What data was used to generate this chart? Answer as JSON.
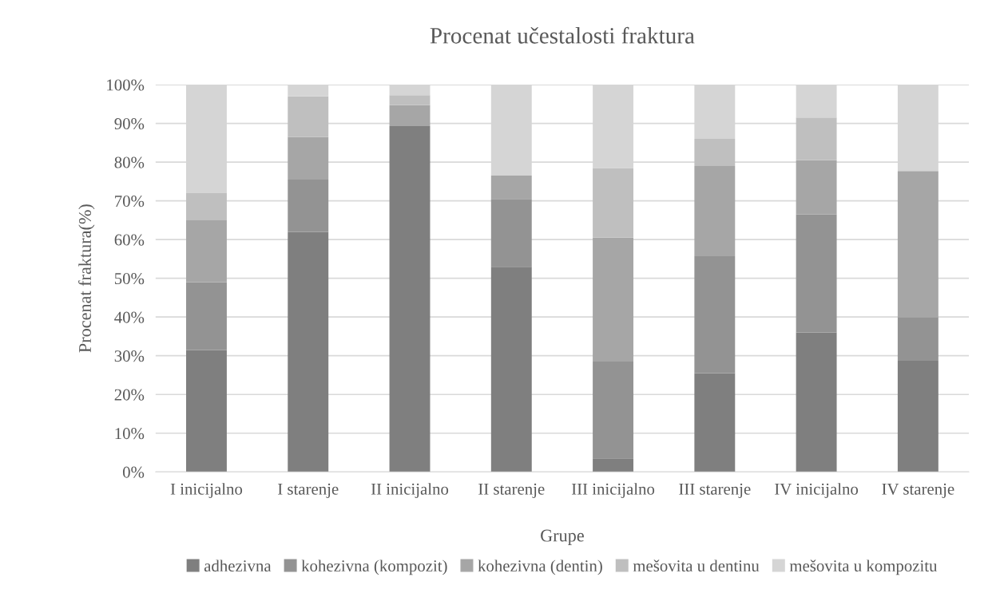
{
  "chart_data": {
    "type": "bar",
    "stacked": true,
    "title": "Procenat učestalosti fraktura",
    "xlabel": "Grupe",
    "ylabel": "Procenat fraktura(%)",
    "categories": [
      "I inicijalno",
      "I starenje",
      "II inicijalno",
      "II starenje",
      "III inicijalno",
      "III starenje",
      "IV inicijalno",
      "IV starenje"
    ],
    "series": [
      {
        "name": "adhezivna",
        "color": "#7f7f7f",
        "values": [
          31.5,
          62,
          89.3,
          53,
          3.5,
          25.5,
          36,
          28.7
        ]
      },
      {
        "name": "kohezivna (kompozit)",
        "color": "#939393",
        "values": [
          17.5,
          13.5,
          0,
          17.5,
          25,
          30.2,
          30.5,
          11.3
        ]
      },
      {
        "name": "kohezivna (dentin)",
        "color": "#a6a6a6",
        "values": [
          16,
          11,
          5.4,
          6,
          32,
          23.3,
          14,
          37.7
        ]
      },
      {
        "name": "mešovita u dentinu",
        "color": "#bfbfbf",
        "values": [
          7,
          10.5,
          2.6,
          0,
          18,
          7,
          11,
          0
        ]
      },
      {
        "name": "mešovita u kompozitu",
        "color": "#d5d5d5",
        "values": [
          28,
          3,
          2.7,
          23.5,
          21.5,
          14,
          8.5,
          22.3
        ]
      }
    ],
    "ylim": [
      0,
      100
    ],
    "yticks": [
      {
        "value": 0,
        "label": "0%"
      },
      {
        "value": 10,
        "label": "10%"
      },
      {
        "value": 20,
        "label": "20%"
      },
      {
        "value": 30,
        "label": "30%"
      },
      {
        "value": 40,
        "label": "40%"
      },
      {
        "value": 50,
        "label": "50%"
      },
      {
        "value": 60,
        "label": "60%"
      },
      {
        "value": 70,
        "label": "70%"
      },
      {
        "value": 80,
        "label": "80%"
      },
      {
        "value": 90,
        "label": "90%"
      },
      {
        "value": 100,
        "label": "100%"
      }
    ],
    "grid": "y",
    "legend": "bottom"
  }
}
